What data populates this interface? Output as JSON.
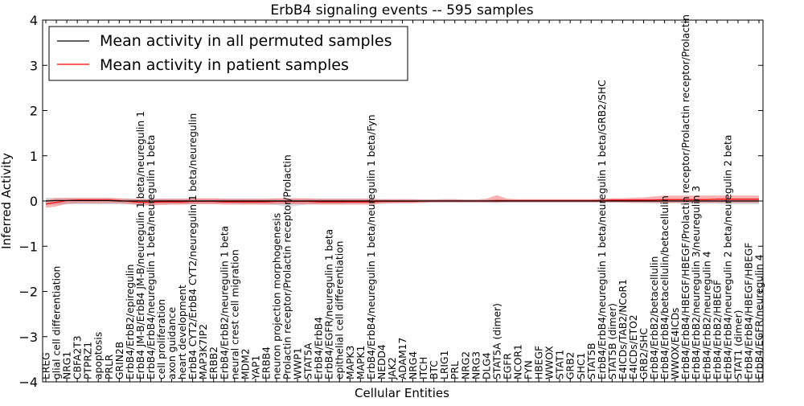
{
  "chart_data": {
    "type": "line",
    "title": "ErbB4 signaling events -- 595 samples",
    "xlabel": "Cellular Entities",
    "ylabel": "Inferred Activity",
    "ylim": [
      -4,
      4
    ],
    "yticks": [
      -4,
      -3,
      -2,
      -1,
      0,
      1,
      2,
      3,
      4
    ],
    "ytick_labels": [
      "−4",
      "−3",
      "−2",
      "−1",
      "0",
      "1",
      "2",
      "3",
      "4"
    ],
    "legend": {
      "placement": "top-left",
      "entries": [
        {
          "label": "Mean activity in all permuted samples",
          "color": "#000000"
        },
        {
          "label": "Mean activity in patient samples",
          "color": "#ff0000"
        }
      ]
    },
    "categories": [
      "EREG",
      "glial cell differentiation",
      "NRG1",
      "CBFA2T3",
      "PTPRZ1",
      "apoptosis",
      "PRLR",
      "GRIN2B",
      "ErbB4/ErbB2/epiregulin",
      "ErbB4 JM-B/ErbB4 JM-B/neuregulin 1 beta/neuregulin 1",
      "ErbB4/ErbB4/neuregulin 1 beta/neuregulin 1 beta",
      "cell proliferation",
      "axon guidance",
      "heart development",
      "ErbB4 CYT2/ErbB4 CYT2/neuregulin 1 beta/neuregulin",
      "MAP3K7IP2",
      "ERBB2",
      "ErbB4/ErbB2/neuregulin 1 beta",
      "neural crest cell migration",
      "MDM2",
      "YAP1",
      "ERBB4",
      "neuron projection morphogenesis",
      "Prolactin receptor/Prolactin receptor/Prolactin",
      "WWP1",
      "STAT5A",
      "ErbB4/ErbB4",
      "ErbB4/EGFR/neuregulin 1 beta",
      "epithelial cell differentiation",
      "MAPK3",
      "MAPK1",
      "ErbB4/ErbB4/neuregulin 1 beta/neuregulin 1 beta/Fyn",
      "NEDD4",
      "JAK2",
      "ADAM17",
      "NRG4",
      "ITCH",
      "BTC",
      "LRIG1",
      "PRL",
      "NRG2",
      "NRG3",
      "DLG4",
      "STAT5A (dimer)",
      "EGFR",
      "NCOR1",
      "FYN",
      "HBEGF",
      "WWOX",
      "STAT1",
      "GRB2",
      "SHC1",
      "STAT5B",
      "ErbB4/ErbB4/neuregulin 1 beta/neuregulin 1 beta/GRB2/SHC",
      "STAT5B (dimer)",
      "E4ICDs/TAB2/NCoR1",
      "E4ICDs/ETO2",
      "GRB2/SHC",
      "ErbB4/ErbB2/betacellulin",
      "ErbB4/ErbB4/betacellulin/betacellulin",
      "WWOX/E4ICDs",
      "ErbB4/ErbB4/HBEGF/HBEGF/Prolactin receptor/Prolactin receptor/Prolactin",
      "ErbB4/ErbB2/neuregulin 3/neuregulin 3",
      "ErbB4/ErbB2/neuregulin 4",
      "ErbB4/ErbB2/HBEGF",
      "ErbB4/ErbB4/neuregulin 2 beta/neuregulin 2 beta",
      "STAT1 (dimer)",
      "ErbB4/ErbB4/HBEGF/HBEGF",
      "ErbB4/EGFR/neuregulin 4"
    ],
    "series": [
      {
        "name": "Mean activity in all permuted samples",
        "color": "#000000",
        "values": [
          0.0,
          0.01,
          0.01,
          0.01,
          0.01,
          0.01,
          0.01,
          0.0,
          0.0,
          0.0,
          0.0,
          0.0,
          0.0,
          0.0,
          0.0,
          0.0,
          0.0,
          0.0,
          0.0,
          0.0,
          0.0,
          0.0,
          0.0,
          0.0,
          0.0,
          0.0,
          0.0,
          0.0,
          0.0,
          0.0,
          0.0,
          0.0,
          0.0,
          0.0,
          0.0,
          0.0,
          0.0,
          0.0,
          0.0,
          0.0,
          0.0,
          0.0,
          0.0,
          0.0,
          0.0,
          0.0,
          0.0,
          0.0,
          0.0,
          0.0,
          0.0,
          0.0,
          0.0,
          0.0,
          0.0,
          0.0,
          0.0,
          0.0,
          0.0,
          0.0,
          0.0,
          0.0,
          0.0,
          0.0,
          0.0,
          0.0,
          0.0,
          0.0,
          0.0
        ],
        "band_upper": [
          0.07,
          0.07,
          0.06,
          0.06,
          0.06,
          0.06,
          0.06,
          0.05,
          0.05,
          0.05,
          0.05,
          0.05,
          0.05,
          0.05,
          0.05,
          0.05,
          0.05,
          0.05,
          0.05,
          0.05,
          0.05,
          0.05,
          0.05,
          0.05,
          0.05,
          0.05,
          0.05,
          0.05,
          0.05,
          0.05,
          0.05,
          0.05,
          0.04,
          0.04,
          0.04,
          0.04,
          0.04,
          0.04,
          0.04,
          0.04,
          0.03,
          0.03,
          0.03,
          0.04,
          0.03,
          0.03,
          0.03,
          0.03,
          0.03,
          0.03,
          0.03,
          0.03,
          0.03,
          0.04,
          0.04,
          0.04,
          0.04,
          0.04,
          0.05,
          0.05,
          0.05,
          0.05,
          0.05,
          0.05,
          0.05,
          0.05,
          0.05,
          0.05,
          0.05
        ],
        "band_lower": [
          -0.08,
          -0.08,
          -0.07,
          -0.07,
          -0.07,
          -0.07,
          -0.07,
          -0.07,
          -0.07,
          -0.07,
          -0.07,
          -0.07,
          -0.07,
          -0.07,
          -0.07,
          -0.06,
          -0.06,
          -0.06,
          -0.06,
          -0.07,
          -0.07,
          -0.08,
          -0.09,
          -0.13,
          -0.1,
          -0.08,
          -0.07,
          -0.07,
          -0.07,
          -0.06,
          -0.06,
          -0.06,
          -0.05,
          -0.05,
          -0.04,
          -0.04,
          -0.04,
          -0.03,
          -0.03,
          -0.03,
          -0.03,
          -0.03,
          -0.03,
          -0.03,
          -0.03,
          -0.03,
          -0.03,
          -0.03,
          -0.03,
          -0.03,
          -0.03,
          -0.03,
          -0.03,
          -0.03,
          -0.03,
          -0.04,
          -0.04,
          -0.04,
          -0.05,
          -0.05,
          -0.05,
          -0.06,
          -0.06,
          -0.06,
          -0.06,
          -0.07,
          -0.07,
          -0.07,
          -0.07
        ]
      },
      {
        "name": "Mean activity in patient samples",
        "color": "#ff0000",
        "values": [
          -0.07,
          -0.03,
          0.01,
          0.02,
          0.02,
          0.02,
          0.02,
          0.01,
          -0.01,
          -0.03,
          -0.03,
          -0.02,
          -0.02,
          -0.02,
          -0.01,
          -0.01,
          -0.01,
          -0.02,
          -0.02,
          -0.02,
          -0.02,
          -0.02,
          -0.01,
          -0.01,
          -0.01,
          -0.01,
          -0.02,
          -0.02,
          -0.02,
          -0.02,
          -0.02,
          -0.02,
          -0.01,
          -0.01,
          -0.01,
          -0.01,
          0.0,
          0.0,
          0.0,
          0.0,
          0.0,
          0.0,
          0.0,
          0.01,
          0.01,
          0.01,
          0.01,
          0.01,
          0.01,
          0.01,
          0.01,
          0.01,
          0.01,
          0.01,
          0.02,
          0.02,
          0.02,
          0.02,
          0.02,
          0.03,
          0.03,
          0.03,
          0.03,
          0.03,
          0.04,
          0.04,
          0.04,
          0.04,
          0.04
        ],
        "band_upper": [
          0.02,
          0.06,
          0.07,
          0.07,
          0.07,
          0.07,
          0.07,
          0.06,
          0.05,
          0.04,
          0.04,
          0.05,
          0.05,
          0.05,
          0.06,
          0.06,
          0.06,
          0.05,
          0.05,
          0.05,
          0.05,
          0.05,
          0.06,
          0.06,
          0.06,
          0.06,
          0.05,
          0.05,
          0.05,
          0.05,
          0.05,
          0.05,
          0.04,
          0.04,
          0.04,
          0.04,
          0.03,
          0.03,
          0.04,
          0.04,
          0.03,
          0.03,
          0.05,
          0.13,
          0.05,
          0.04,
          0.04,
          0.04,
          0.04,
          0.04,
          0.04,
          0.04,
          0.04,
          0.05,
          0.06,
          0.06,
          0.07,
          0.08,
          0.1,
          0.12,
          0.12,
          0.12,
          0.12,
          0.12,
          0.12,
          0.12,
          0.12,
          0.12,
          0.12
        ],
        "band_lower": [
          -0.15,
          -0.12,
          -0.06,
          -0.05,
          -0.05,
          -0.05,
          -0.05,
          -0.05,
          -0.07,
          -0.1,
          -0.1,
          -0.09,
          -0.08,
          -0.08,
          -0.07,
          -0.07,
          -0.07,
          -0.08,
          -0.08,
          -0.08,
          -0.08,
          -0.08,
          -0.07,
          -0.07,
          -0.07,
          -0.07,
          -0.08,
          -0.08,
          -0.08,
          -0.08,
          -0.08,
          -0.08,
          -0.06,
          -0.05,
          -0.05,
          -0.05,
          -0.04,
          -0.03,
          -0.03,
          -0.03,
          -0.03,
          -0.03,
          -0.03,
          -0.04,
          -0.03,
          -0.03,
          -0.03,
          -0.03,
          -0.03,
          -0.03,
          -0.03,
          -0.03,
          -0.03,
          -0.03,
          -0.03,
          -0.03,
          -0.04,
          -0.04,
          -0.04,
          -0.04,
          -0.04,
          -0.04,
          -0.04,
          -0.04,
          -0.04,
          -0.04,
          -0.04,
          -0.04,
          -0.04
        ]
      }
    ]
  }
}
